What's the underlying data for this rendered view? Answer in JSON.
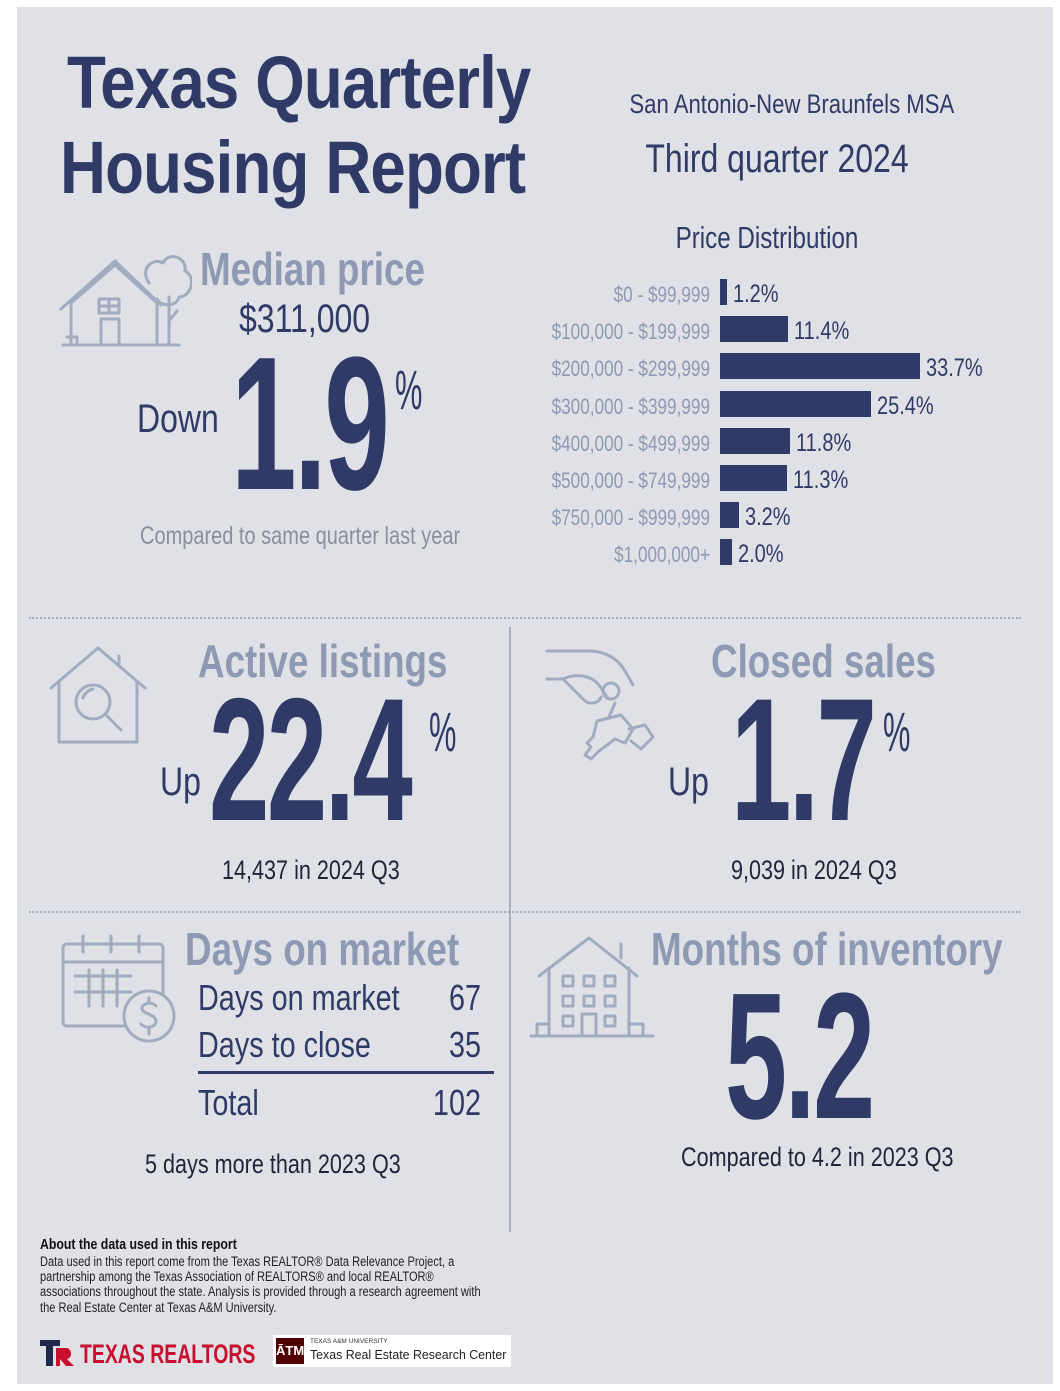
{
  "header": {
    "title_line1": "Texas Quarterly",
    "title_line2": "Housing Report",
    "msa": "San Antonio-New Braunfels MSA",
    "quarter": "Third quarter 2024"
  },
  "median_price": {
    "heading": "Median price",
    "price": "$311,000",
    "direction": "Down",
    "change": "1.9",
    "unit": "%",
    "note": "Compared to same quarter last year"
  },
  "chart_data": {
    "type": "bar",
    "orientation": "horizontal",
    "title": "Price Distribution",
    "categories": [
      "$0 - $99,999",
      "$100,000 - $199,999",
      "$200,000 - $299,999",
      "$300,000 - $399,999",
      "$400,000 - $499,999",
      "$500,000 - $749,999",
      "$750,000 - $999,999",
      "$1,000,000+"
    ],
    "values": [
      1.2,
      11.4,
      33.7,
      25.4,
      11.8,
      11.3,
      3.2,
      2.0
    ],
    "value_labels": [
      "1.2%",
      "11.4%",
      "33.7%",
      "25.4%",
      "11.8%",
      "11.3%",
      "3.2%",
      "2.0%"
    ],
    "xlim": [
      0,
      33.7
    ],
    "grid": false,
    "color": "#2f3b66"
  },
  "active_listings": {
    "heading": "Active listings",
    "direction": "Up",
    "change": "22.4",
    "unit": "%",
    "sub": "14,437 in 2024 Q3"
  },
  "closed_sales": {
    "heading": "Closed sales",
    "direction": "Up",
    "change": "1.7",
    "unit": "%",
    "sub": "9,039 in 2024 Q3"
  },
  "days_on_market": {
    "heading": "Days on market",
    "rows": [
      {
        "label": "Days on market",
        "value": "67"
      },
      {
        "label": "Days to close",
        "value": "35"
      }
    ],
    "total_label": "Total",
    "total_value": "102",
    "note": "5 days more than 2023 Q3"
  },
  "months_inventory": {
    "heading": "Months of inventory",
    "value": "5.2",
    "note": "Compared to 4.2 in 2023 Q3"
  },
  "about": {
    "title": "About the data used in this report",
    "body": "Data used in this report come from the Texas REALTOR® Data Relevance Project, a partnership among the Texas Association of REALTORS® and local REALTOR® associations throughout the state. Analysis is provided through a research agreement with the Real Estate Center at Texas A&M University."
  },
  "logos": {
    "texas_realtors": "TEXAS REALTORS",
    "tamu_small": "TEXAS A&M UNIVERSITY",
    "tamu_center": "Texas Real Estate Research Center"
  },
  "colors": {
    "navy": "#2f3b66",
    "heading_gray": "#8e99b3",
    "background": "#dfe1e6",
    "brand_red": "#c8102e",
    "maroon": "#500000"
  }
}
